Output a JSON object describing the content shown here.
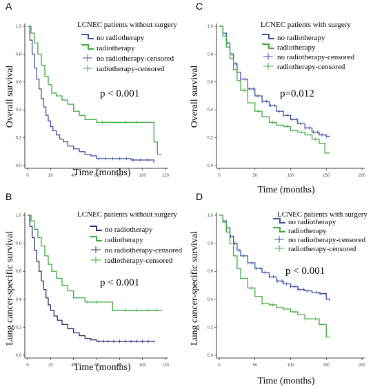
{
  "colors": {
    "no_radiotherapy_blue": "#3e4fa0",
    "no_radiotherapy_navy": "#2b2e6e",
    "radiotherapy_green": "#3daa3d"
  },
  "chart_data": [
    {
      "panel": "A",
      "type": "line",
      "step": true,
      "title": "LCNEC patients without surgery",
      "xlabel": "Time (months)",
      "ylabel": "Overall survival",
      "xlim": [
        0,
        120
      ],
      "ylim": [
        0,
        1.0
      ],
      "xticks": [
        "0",
        "20",
        "40",
        "60",
        "80",
        "100",
        "120"
      ],
      "yticks": [
        "0.0",
        "0.2",
        "0.4",
        "0.6",
        "0.8",
        "1.0"
      ],
      "pvalue": "p < 0.001",
      "legend": [
        "no radiotherapy",
        "radiotherapy",
        "no radiotherapy-censored",
        "radiotherapy-censored"
      ],
      "series": [
        {
          "name": "no radiotherapy",
          "color": "#3e4fa0",
          "x": [
            0,
            2,
            4,
            6,
            8,
            10,
            12,
            14,
            16,
            18,
            20,
            22,
            25,
            28,
            31,
            35,
            40,
            45,
            50,
            55,
            60,
            70,
            80,
            90,
            100,
            110
          ],
          "y": [
            1.0,
            0.9,
            0.8,
            0.7,
            0.62,
            0.55,
            0.48,
            0.42,
            0.36,
            0.32,
            0.28,
            0.25,
            0.22,
            0.19,
            0.17,
            0.14,
            0.12,
            0.1,
            0.08,
            0.07,
            0.05,
            0.05,
            0.05,
            0.04,
            0.04,
            0.02
          ],
          "censored_x": [
            62,
            68,
            74,
            80,
            86,
            92,
            98,
            104
          ]
        },
        {
          "name": "radiotherapy",
          "color": "#3daa3d",
          "x": [
            0,
            3,
            6,
            9,
            12,
            15,
            18,
            21,
            25,
            30,
            35,
            40,
            45,
            50,
            60,
            70,
            80,
            90,
            100,
            110,
            113,
            117
          ],
          "y": [
            1.0,
            0.95,
            0.88,
            0.8,
            0.72,
            0.64,
            0.58,
            0.52,
            0.5,
            0.47,
            0.44,
            0.39,
            0.36,
            0.33,
            0.31,
            0.31,
            0.31,
            0.31,
            0.31,
            0.17,
            0.08,
            0.08
          ],
          "censored_x": [
            65,
            85,
            95
          ]
        }
      ]
    },
    {
      "panel": "B",
      "type": "line",
      "step": true,
      "title": "LCNEC patients without surgery",
      "xlabel": "Time (months)",
      "ylabel": "Lung cancer-specific survival",
      "xlim": [
        0,
        120
      ],
      "ylim": [
        0,
        1.0
      ],
      "xticks": [
        "0",
        "20",
        "40",
        "60",
        "80",
        "100",
        "120"
      ],
      "yticks": [
        "0.0",
        "0.2",
        "0.4",
        "0.6",
        "0.8",
        "1.0"
      ],
      "pvalue": "p < 0.001",
      "legend": [
        "no radiotherapy",
        "radiotherapy",
        "no radiotherapy-censored",
        "radiotherapy-censored"
      ],
      "series": [
        {
          "name": "no radiotherapy",
          "color": "#2b2e6e",
          "x": [
            0,
            2,
            4,
            6,
            8,
            10,
            12,
            14,
            16,
            18,
            20,
            23,
            26,
            30,
            35,
            40,
            45,
            50,
            55,
            60,
            70,
            80,
            90,
            100,
            110
          ],
          "y": [
            1.0,
            0.92,
            0.84,
            0.75,
            0.67,
            0.6,
            0.53,
            0.47,
            0.41,
            0.36,
            0.32,
            0.28,
            0.25,
            0.22,
            0.19,
            0.16,
            0.14,
            0.12,
            0.11,
            0.1,
            0.1,
            0.1,
            0.1,
            0.1,
            0.1
          ],
          "censored_x": [
            62,
            66,
            70,
            75,
            80,
            85,
            90,
            95,
            100,
            105,
            110
          ]
        },
        {
          "name": "radiotherapy",
          "color": "#3daa3d",
          "x": [
            0,
            3,
            6,
            9,
            12,
            15,
            18,
            21,
            25,
            30,
            35,
            40,
            50,
            60,
            74,
            80,
            90,
            100,
            110,
            117
          ],
          "y": [
            1.0,
            0.96,
            0.9,
            0.84,
            0.78,
            0.71,
            0.65,
            0.6,
            0.55,
            0.5,
            0.46,
            0.41,
            0.38,
            0.38,
            0.32,
            0.32,
            0.32,
            0.32,
            0.32,
            0.32
          ],
          "censored_x": [
            52,
            60,
            85,
            95,
            105,
            112
          ]
        }
      ]
    },
    {
      "panel": "C",
      "type": "line",
      "step": true,
      "title": "LCNEC patients with surgery",
      "xlabel": "Time (months)",
      "ylabel": "Overall survival",
      "xlim": [
        0,
        200
      ],
      "ylim": [
        0,
        1.0
      ],
      "xticks": [
        "0",
        "50",
        "100",
        "150",
        "200"
      ],
      "yticks": [
        "0.0",
        "0.2",
        "0.4",
        "0.6",
        "0.8",
        "1.0"
      ],
      "pvalue": "p=0.012",
      "legend": [
        "no radiotherapy",
        "radiotherapy",
        "no radiotherapy-censored",
        "radiotherapy-censored"
      ],
      "series": [
        {
          "name": "no radiotherapy",
          "color": "#3e4fa0",
          "x": [
            0,
            5,
            10,
            15,
            20,
            25,
            30,
            40,
            50,
            60,
            70,
            80,
            90,
            100,
            110,
            120,
            130,
            140,
            150,
            155
          ],
          "y": [
            1.0,
            0.95,
            0.88,
            0.8,
            0.73,
            0.67,
            0.62,
            0.55,
            0.5,
            0.46,
            0.43,
            0.39,
            0.36,
            0.33,
            0.3,
            0.27,
            0.24,
            0.22,
            0.21,
            0.21
          ],
          "censored_x": [
            12,
            18,
            24,
            30,
            36,
            42,
            48,
            54,
            60,
            66,
            72,
            78,
            84,
            90,
            96,
            102,
            108,
            114,
            120,
            126,
            132,
            138,
            144,
            150
          ]
        },
        {
          "name": "radiotherapy",
          "color": "#3daa3d",
          "x": [
            0,
            5,
            10,
            15,
            20,
            25,
            30,
            40,
            50,
            60,
            70,
            80,
            90,
            100,
            110,
            120,
            130,
            140,
            148,
            155
          ],
          "y": [
            1.0,
            0.93,
            0.85,
            0.77,
            0.69,
            0.61,
            0.54,
            0.45,
            0.39,
            0.35,
            0.31,
            0.29,
            0.28,
            0.25,
            0.24,
            0.22,
            0.19,
            0.16,
            0.09,
            0.09
          ],
          "censored_x": [
            20,
            35,
            55,
            75,
            95,
            115,
            135
          ]
        }
      ]
    },
    {
      "panel": "D",
      "type": "line",
      "step": true,
      "title": "LCNEC patients with surgery",
      "xlabel": "Time (months)",
      "ylabel": "Lung cancer-specific survival",
      "xlim": [
        0,
        200
      ],
      "ylim": [
        0,
        1.0
      ],
      "xticks": [
        "0",
        "50",
        "100",
        "150",
        "200"
      ],
      "yticks": [
        "0.0",
        "0.2",
        "0.4",
        "0.6",
        "0.8",
        "1.0"
      ],
      "pvalue": "p < 0.001",
      "legend": [
        "no radiotherapy",
        "radiotherapy",
        "no radiotherapy-censored",
        "radiotherapy-censored"
      ],
      "series": [
        {
          "name": "no radiotherapy",
          "color": "#3e4fa0",
          "x": [
            0,
            5,
            10,
            15,
            20,
            25,
            30,
            40,
            50,
            60,
            70,
            80,
            90,
            100,
            110,
            120,
            130,
            140,
            150,
            155
          ],
          "y": [
            1.0,
            0.96,
            0.91,
            0.85,
            0.8,
            0.75,
            0.71,
            0.66,
            0.62,
            0.59,
            0.56,
            0.53,
            0.51,
            0.49,
            0.47,
            0.46,
            0.45,
            0.44,
            0.4,
            0.4
          ],
          "censored_x": [
            10,
            16,
            22,
            28,
            34,
            40,
            46,
            52,
            58,
            64,
            70,
            76,
            82,
            88,
            94,
            100,
            106,
            112,
            118,
            124,
            130,
            136,
            142,
            148,
            154
          ]
        },
        {
          "name": "radiotherapy",
          "color": "#3daa3d",
          "x": [
            0,
            5,
            10,
            15,
            20,
            25,
            30,
            40,
            50,
            60,
            70,
            80,
            90,
            100,
            110,
            120,
            130,
            140,
            150,
            155
          ],
          "y": [
            1.0,
            0.95,
            0.88,
            0.8,
            0.71,
            0.62,
            0.55,
            0.48,
            0.42,
            0.37,
            0.36,
            0.34,
            0.33,
            0.31,
            0.29,
            0.26,
            0.26,
            0.22,
            0.13,
            0.13
          ],
          "censored_x": [
            15,
            30,
            45,
            60,
            75,
            90,
            105,
            120,
            135
          ]
        }
      ]
    }
  ]
}
